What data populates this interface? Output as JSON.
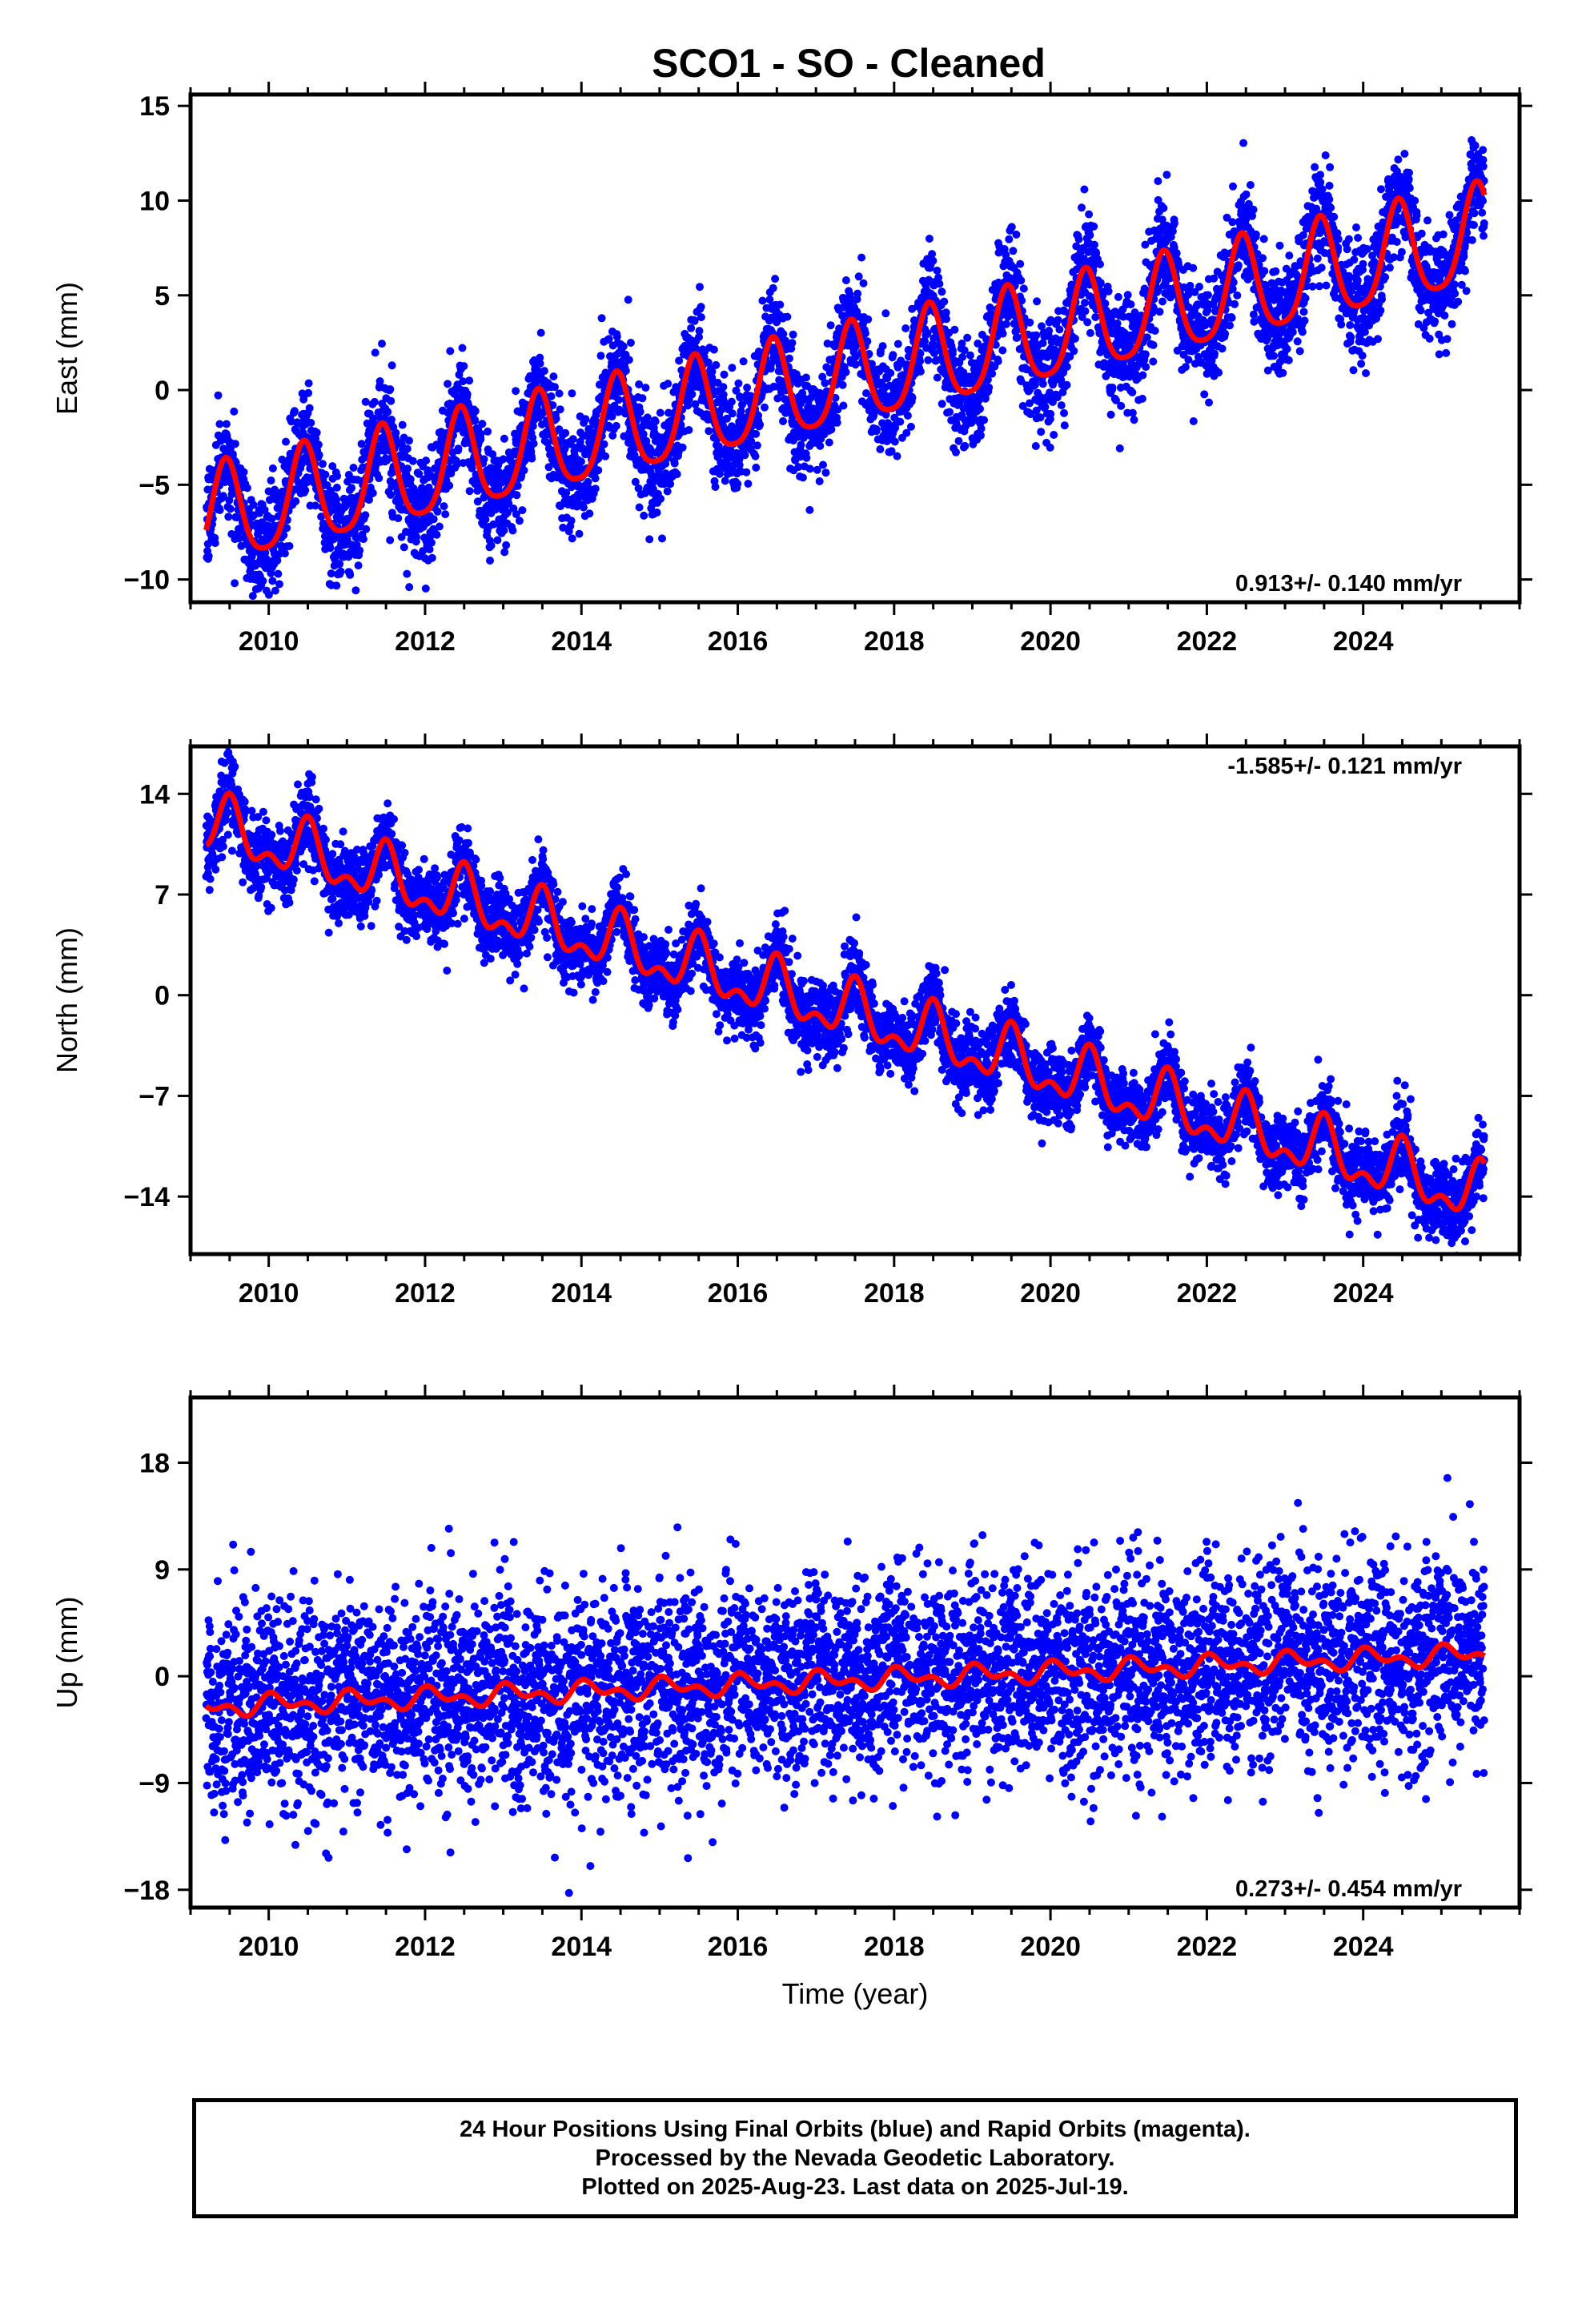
{
  "title": "SCO1  - SO - Cleaned",
  "colors": {
    "data": "#0000ff",
    "fit": "#ff0000",
    "frame": "#000000"
  },
  "footer": {
    "line1": "24 Hour Positions Using Final Orbits (blue) and Rapid Orbits (magenta).",
    "line2": "Processed by the Nevada Geodetic Laboratory.",
    "line3": "Plotted on 2025-Aug-23. Last data on 2025-Jul-19."
  },
  "chart_data": [
    {
      "type": "scatter",
      "ylabel": "East (mm)",
      "xlabel": "",
      "xlim": [
        2009.0,
        2026.0
      ],
      "ylim": [
        -11.2,
        15.6
      ],
      "xticks": [
        "2010",
        "2012",
        "2014",
        "2016",
        "2018",
        "2020",
        "2022",
        "2024"
      ],
      "yticks": [
        "15",
        "10",
        "5",
        "0",
        "−5",
        "−10"
      ],
      "ytick_values": [
        15,
        10,
        5,
        0,
        -5,
        -10
      ],
      "rate_label": "0.913+/- 0.140 mm/yr",
      "rate_position": "bottom-right",
      "model": {
        "t0": 2009.2,
        "y0": -6.9,
        "rate": 0.913,
        "annual_amp": 2.6,
        "annual_peak": 0.45,
        "semi_amp": 0.5,
        "semi_peak": 0.45,
        "noise": 1.4
      },
      "series": [
        {
          "kind": "daily positions",
          "color": "#0000ff"
        },
        {
          "kind": "model fit",
          "color": "#ff0000"
        }
      ]
    },
    {
      "type": "scatter",
      "ylabel": "North (mm)",
      "xlabel": "",
      "xlim": [
        2009.0,
        2026.0
      ],
      "ylim": [
        -18.0,
        17.3
      ],
      "xticks": [
        "2010",
        "2012",
        "2014",
        "2016",
        "2018",
        "2020",
        "2022",
        "2024"
      ],
      "yticks": [
        "14",
        "7",
        "0",
        "−7",
        "−14"
      ],
      "ytick_values": [
        14,
        7,
        0,
        -7,
        -14
      ],
      "rate_label": "-1.585+/- 0.121 mm/yr",
      "rate_position": "top-right",
      "model": {
        "t0": 2009.2,
        "y0": 11.8,
        "rate": -1.585,
        "annual_amp": 1.7,
        "annual_peak": 0.5,
        "semi_amp": 1.0,
        "semi_peak": 0.5,
        "noise": 1.3
      },
      "series": [
        {
          "kind": "daily positions",
          "color": "#0000ff"
        },
        {
          "kind": "model fit",
          "color": "#ff0000"
        }
      ]
    },
    {
      "type": "scatter",
      "ylabel": "Up (mm)",
      "xlabel": "Time (year)",
      "xlim": [
        2009.0,
        2026.0
      ],
      "ylim": [
        -19.5,
        23.5
      ],
      "xticks": [
        "2010",
        "2012",
        "2014",
        "2016",
        "2018",
        "2020",
        "2022",
        "2024"
      ],
      "yticks": [
        "18",
        "9",
        "0",
        "−9",
        "−18"
      ],
      "ytick_values": [
        18,
        9,
        0,
        -9,
        -18
      ],
      "rate_label": "0.273+/- 0.454 mm/yr",
      "rate_position": "bottom-right",
      "model": {
        "t0": 2009.2,
        "y0": -2.6,
        "rate": 0.273,
        "annual_amp": 0.6,
        "annual_peak": 0.1,
        "semi_amp": 0.5,
        "semi_peak": 0.0,
        "noise": 4.2
      },
      "series": [
        {
          "kind": "daily positions",
          "color": "#0000ff"
        },
        {
          "kind": "model fit",
          "color": "#ff0000"
        }
      ]
    }
  ]
}
